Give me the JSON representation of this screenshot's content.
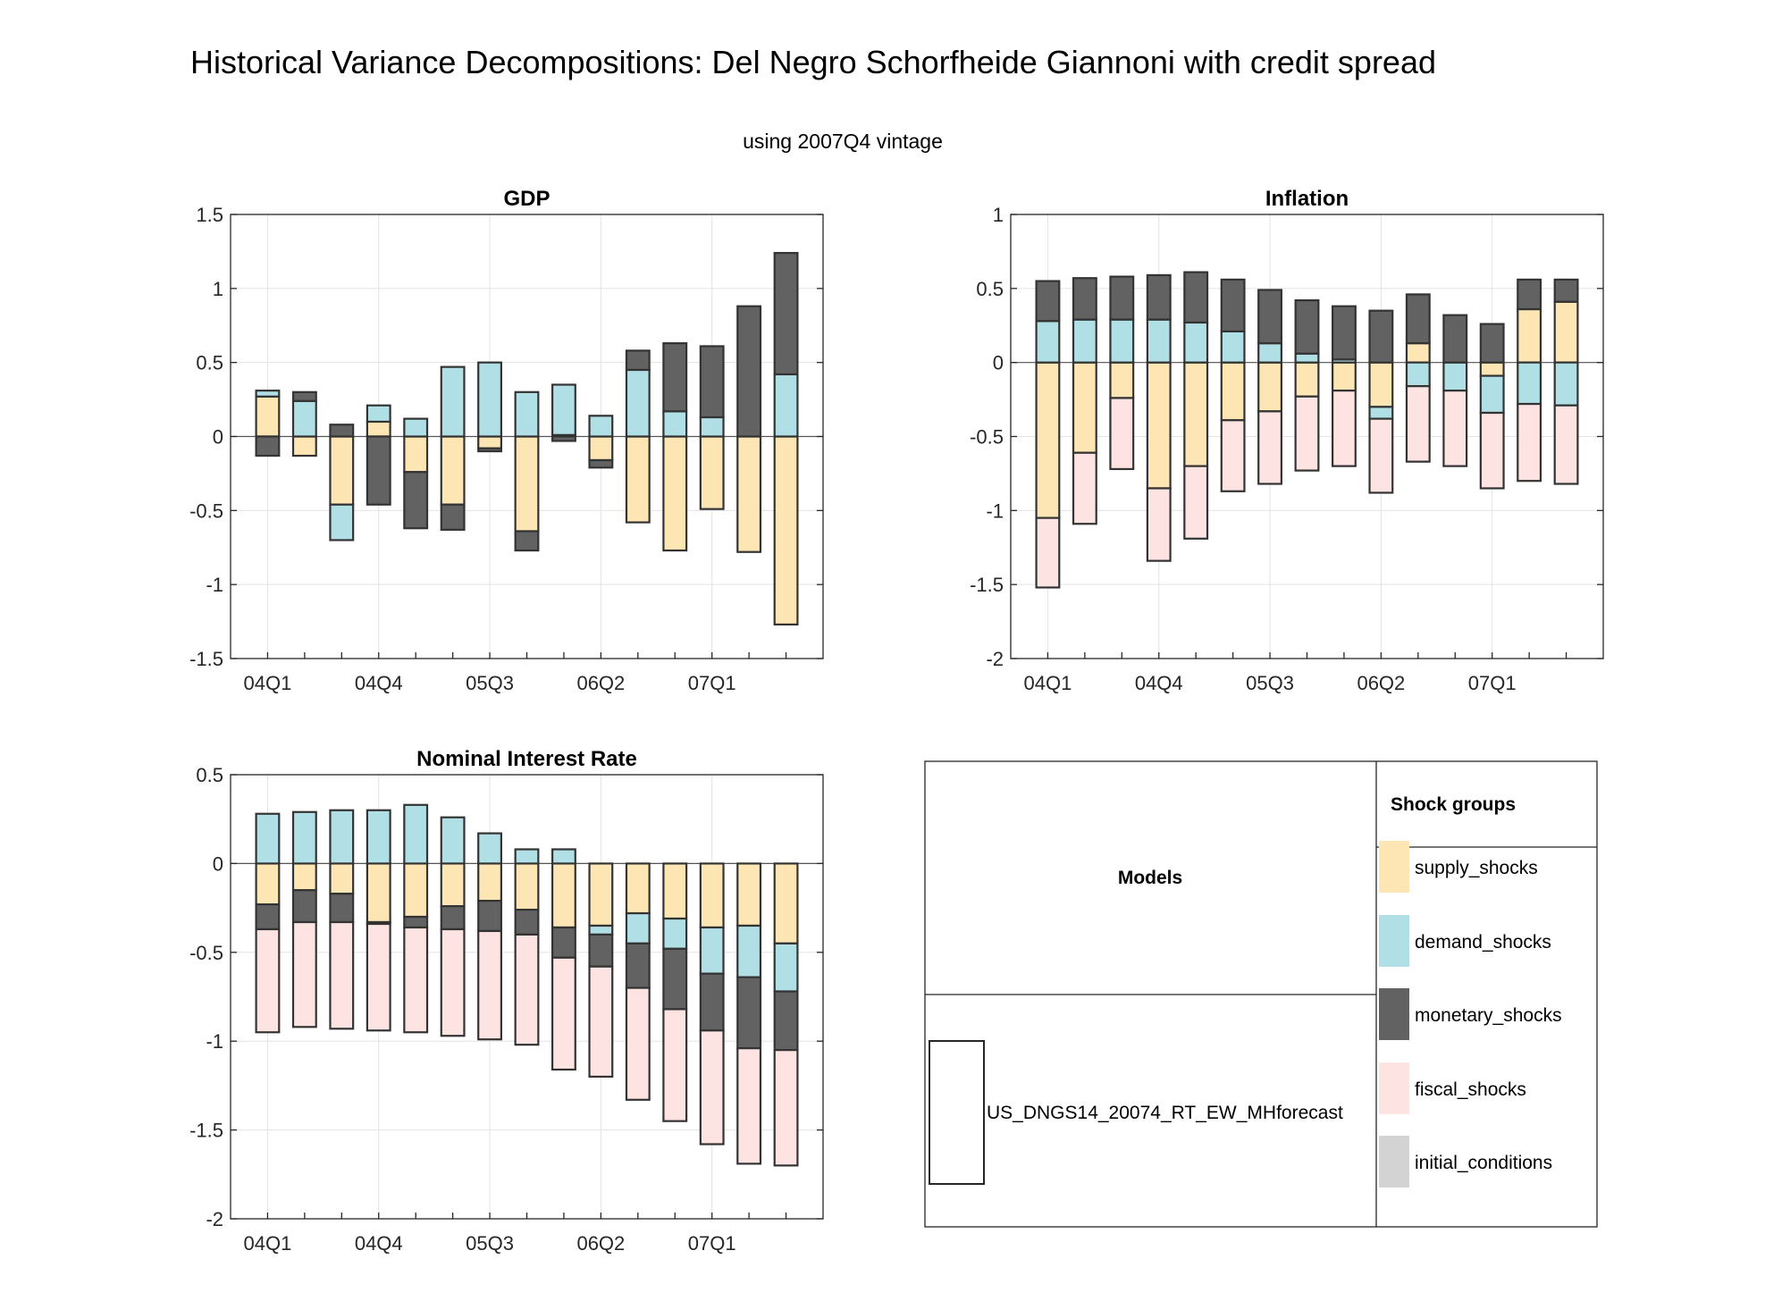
{
  "page": {
    "title": "Historical Variance Decompositions: Del Negro Schorfheide Giannoni with credit spread",
    "subtitle": "using 2007Q4 vintage"
  },
  "colors": {
    "supply_shocks": "#fde5b4",
    "demand_shocks": "#b0dfe5",
    "monetary_shocks": "#626262",
    "fiscal_shocks": "#fde3e1",
    "initial_conditions": "#d3d3d3",
    "bar_edge": "#333333",
    "grid": "#e3e3e3",
    "axis": "#262626"
  },
  "chart_data": [
    {
      "type": "bar",
      "stacked": true,
      "title": "GDP",
      "xlabel": "",
      "ylabel": "",
      "ylim": [
        -1.5,
        1.5
      ],
      "yticks": [
        -1.5,
        -1,
        -0.5,
        0,
        0.5,
        1,
        1.5
      ],
      "x": [
        "04Q1",
        "04Q2",
        "04Q3",
        "04Q4",
        "05Q1",
        "05Q2",
        "05Q3",
        "05Q4",
        "06Q1",
        "06Q2",
        "06Q3",
        "06Q4",
        "07Q1",
        "07Q2",
        "07Q3"
      ],
      "xticklabels": [
        "04Q1",
        "04Q4",
        "05Q3",
        "06Q2",
        "07Q1"
      ],
      "grid": true,
      "series": [
        {
          "name": "supply_shocks",
          "values": [
            0.27,
            -0.13,
            -0.46,
            0.1,
            -0.24,
            -0.46,
            -0.08,
            -0.64,
            0.01,
            -0.16,
            -0.58,
            -0.77,
            -0.49,
            -0.78,
            -1.27
          ]
        },
        {
          "name": "demand_shocks",
          "values": [
            0.04,
            0.24,
            -0.24,
            0.11,
            0.12,
            0.47,
            0.5,
            0.3,
            0.34,
            0.14,
            0.45,
            0.17,
            0.13,
            0.0,
            0.42
          ]
        },
        {
          "name": "monetary_shocks",
          "values": [
            -0.13,
            0.06,
            0.08,
            -0.46,
            -0.38,
            -0.17,
            -0.02,
            -0.13,
            -0.03,
            -0.05,
            0.13,
            0.46,
            0.48,
            0.88,
            0.82
          ]
        },
        {
          "name": "fiscal_shocks",
          "values": [
            0,
            0,
            0,
            0,
            0,
            0,
            0,
            0,
            0,
            0,
            0,
            0,
            0,
            0,
            0
          ]
        },
        {
          "name": "initial_conditions",
          "values": [
            0,
            0,
            0,
            0,
            0,
            0,
            0,
            0,
            0,
            0,
            0,
            0,
            0,
            0,
            0
          ]
        }
      ]
    },
    {
      "type": "bar",
      "stacked": true,
      "title": "Inflation",
      "xlabel": "",
      "ylabel": "",
      "ylim": [
        -2,
        1
      ],
      "yticks": [
        -2,
        -1.5,
        -1,
        -0.5,
        0,
        0.5,
        1
      ],
      "x": [
        "04Q1",
        "04Q2",
        "04Q3",
        "04Q4",
        "05Q1",
        "05Q2",
        "05Q3",
        "05Q4",
        "06Q1",
        "06Q2",
        "06Q3",
        "06Q4",
        "07Q1",
        "07Q2",
        "07Q3"
      ],
      "xticklabels": [
        "04Q1",
        "04Q4",
        "05Q3",
        "06Q2",
        "07Q1"
      ],
      "grid": true,
      "series": [
        {
          "name": "supply_shocks",
          "values": [
            -1.05,
            -0.61,
            -0.24,
            -0.85,
            -0.7,
            -0.39,
            -0.33,
            -0.23,
            -0.19,
            -0.3,
            0.13,
            0.0,
            -0.09,
            0.36,
            0.41
          ]
        },
        {
          "name": "demand_shocks",
          "values": [
            0.28,
            0.29,
            0.29,
            0.29,
            0.27,
            0.21,
            0.13,
            0.06,
            0.02,
            -0.08,
            -0.16,
            -0.19,
            -0.25,
            -0.28,
            -0.29
          ]
        },
        {
          "name": "monetary_shocks",
          "values": [
            0.27,
            0.28,
            0.29,
            0.3,
            0.34,
            0.35,
            0.36,
            0.36,
            0.36,
            0.35,
            0.33,
            0.32,
            0.26,
            0.2,
            0.15
          ]
        },
        {
          "name": "fiscal_shocks",
          "values": [
            -0.47,
            -0.48,
            -0.48,
            -0.49,
            -0.49,
            -0.48,
            -0.49,
            -0.5,
            -0.51,
            -0.5,
            -0.51,
            -0.51,
            -0.51,
            -0.52,
            -0.53
          ]
        },
        {
          "name": "initial_conditions",
          "values": [
            0,
            0,
            0,
            0,
            0,
            0,
            0,
            0,
            0,
            0,
            0,
            0,
            0,
            0,
            0
          ]
        }
      ]
    },
    {
      "type": "bar",
      "stacked": true,
      "title": "Nominal Interest Rate",
      "xlabel": "",
      "ylabel": "",
      "ylim": [
        -2,
        0.5
      ],
      "yticks": [
        -2,
        -1.5,
        -1,
        -0.5,
        0,
        0.5
      ],
      "x": [
        "04Q1",
        "04Q2",
        "04Q3",
        "04Q4",
        "05Q1",
        "05Q2",
        "05Q3",
        "05Q4",
        "06Q1",
        "06Q2",
        "06Q3",
        "06Q4",
        "07Q1",
        "07Q2",
        "07Q3"
      ],
      "xticklabels": [
        "04Q1",
        "04Q4",
        "05Q3",
        "06Q2",
        "07Q1"
      ],
      "grid": true,
      "series": [
        {
          "name": "supply_shocks",
          "values": [
            -0.23,
            -0.15,
            -0.17,
            -0.33,
            -0.3,
            -0.24,
            -0.21,
            -0.26,
            -0.36,
            -0.35,
            -0.28,
            -0.31,
            -0.36,
            -0.35,
            -0.45
          ]
        },
        {
          "name": "demand_shocks",
          "values": [
            0.28,
            0.29,
            0.3,
            0.3,
            0.33,
            0.26,
            0.17,
            0.08,
            0.08,
            -0.05,
            -0.17,
            -0.17,
            -0.26,
            -0.29,
            -0.27
          ]
        },
        {
          "name": "monetary_shocks",
          "values": [
            -0.14,
            -0.18,
            -0.16,
            -0.01,
            -0.06,
            -0.13,
            -0.17,
            -0.14,
            -0.17,
            -0.18,
            -0.25,
            -0.34,
            -0.32,
            -0.4,
            -0.33
          ]
        },
        {
          "name": "fiscal_shocks",
          "values": [
            -0.58,
            -0.59,
            -0.6,
            -0.6,
            -0.59,
            -0.6,
            -0.61,
            -0.62,
            -0.63,
            -0.62,
            -0.63,
            -0.63,
            -0.64,
            -0.65,
            -0.65
          ]
        },
        {
          "name": "initial_conditions",
          "values": [
            0,
            0,
            0,
            0,
            0,
            0,
            0,
            0,
            0,
            0,
            0,
            0,
            0,
            0,
            0
          ]
        }
      ]
    }
  ],
  "legend": {
    "models_header": "Models",
    "model_name": "US_DNGS14_20074_RT_EW_MHforecast",
    "groups_header": "Shock groups",
    "groups": [
      {
        "key": "supply_shocks",
        "label": "supply_shocks"
      },
      {
        "key": "demand_shocks",
        "label": "demand_shocks"
      },
      {
        "key": "monetary_shocks",
        "label": "monetary_shocks"
      },
      {
        "key": "fiscal_shocks",
        "label": "fiscal_shocks"
      },
      {
        "key": "initial_conditions",
        "label": "initial_conditions"
      }
    ]
  }
}
